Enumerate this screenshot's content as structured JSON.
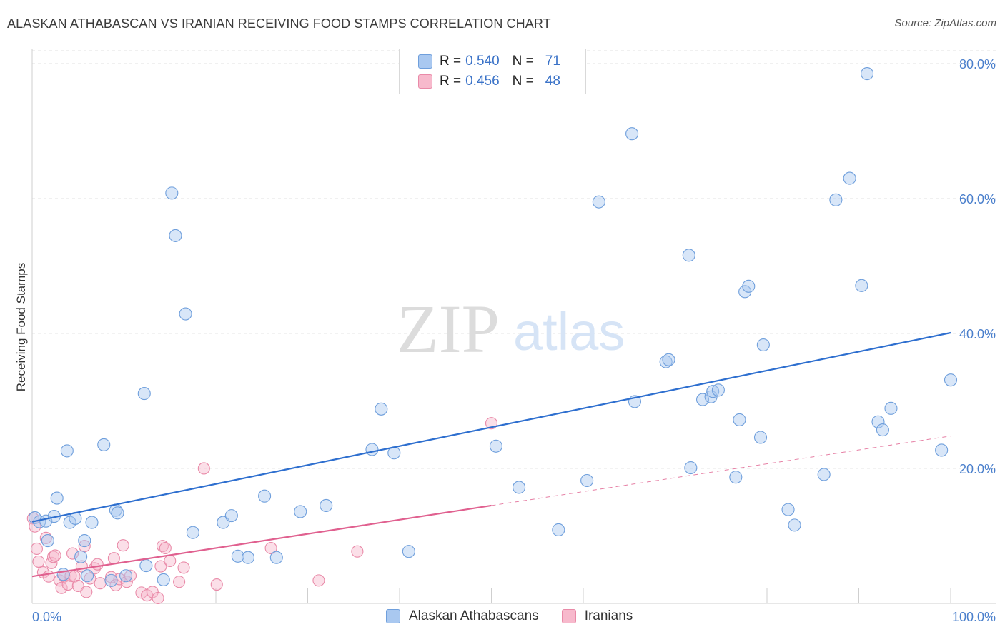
{
  "header": {
    "title": "ALASKAN ATHABASCAN VS IRANIAN RECEIVING FOOD STAMPS CORRELATION CHART",
    "source": "Source: ZipAtlas.com"
  },
  "watermark": {
    "zip": "ZIP",
    "atlas": "atlas"
  },
  "legend": {
    "rows": [
      {
        "r_label": "R =",
        "r_value": "0.540",
        "n_label": "N =",
        "n_value": "71"
      },
      {
        "r_label": "R =",
        "r_value": "0.456",
        "n_label": "N =",
        "n_value": "48"
      }
    ]
  },
  "colors": {
    "blue_fill": "#a9c8f0",
    "blue_stroke": "#6f9fdc",
    "blue_line": "#2e6fcf",
    "pink_fill": "#f7b9cc",
    "pink_stroke": "#e98aa8",
    "pink_line": "#e0608f"
  },
  "chart_data": {
    "type": "scatter",
    "title": "ALASKAN ATHABASCAN VS IRANIAN RECEIVING FOOD STAMPS CORRELATION CHART",
    "xlabel": "",
    "ylabel": "Receiving Food Stamps",
    "xlim": [
      0,
      100
    ],
    "ylim": [
      0,
      82
    ],
    "x_tick_labels": [
      "0.0%",
      "100.0%"
    ],
    "y_ticks": [
      20,
      40,
      60,
      80
    ],
    "y_tick_labels": [
      "20.0%",
      "40.0%",
      "60.0%",
      "80.0%"
    ],
    "grid": true,
    "legend_position": "top-center",
    "series": [
      {
        "name": "Alaskan Athabascans",
        "color": "#a9c8f0",
        "trend": {
          "x": [
            0,
            100
          ],
          "y": [
            12.1,
            40.1
          ],
          "style": "solid"
        },
        "points": [
          [
            0.3,
            12.7
          ],
          [
            0.8,
            12.1
          ],
          [
            1.5,
            12.2
          ],
          [
            1.7,
            9.3
          ],
          [
            2.4,
            12.9
          ],
          [
            2.7,
            15.6
          ],
          [
            3.4,
            4.3
          ],
          [
            3.8,
            22.6
          ],
          [
            4.1,
            12.0
          ],
          [
            4.7,
            12.6
          ],
          [
            5.3,
            6.9
          ],
          [
            5.7,
            9.3
          ],
          [
            6.0,
            4.1
          ],
          [
            6.5,
            12.0
          ],
          [
            7.8,
            23.5
          ],
          [
            8.6,
            3.4
          ],
          [
            9.1,
            13.8
          ],
          [
            9.3,
            13.4
          ],
          [
            10.2,
            4.1
          ],
          [
            12.2,
            31.1
          ],
          [
            12.4,
            5.6
          ],
          [
            14.3,
            3.5
          ],
          [
            15.2,
            60.8
          ],
          [
            15.6,
            54.5
          ],
          [
            16.7,
            42.9
          ],
          [
            17.5,
            10.5
          ],
          [
            20.8,
            12.0
          ],
          [
            21.7,
            13.0
          ],
          [
            22.4,
            7.0
          ],
          [
            23.5,
            6.8
          ],
          [
            25.3,
            15.9
          ],
          [
            26.6,
            6.8
          ],
          [
            29.2,
            13.6
          ],
          [
            32.0,
            14.5
          ],
          [
            38.0,
            28.8
          ],
          [
            37.0,
            22.8
          ],
          [
            39.4,
            22.3
          ],
          [
            41.0,
            7.7
          ],
          [
            50.5,
            23.3
          ],
          [
            53.0,
            17.2
          ],
          [
            57.3,
            10.9
          ],
          [
            60.4,
            18.2
          ],
          [
            61.7,
            59.5
          ],
          [
            65.3,
            69.6
          ],
          [
            65.6,
            29.9
          ],
          [
            69.0,
            35.8
          ],
          [
            69.3,
            36.1
          ],
          [
            71.5,
            51.6
          ],
          [
            71.7,
            20.1
          ],
          [
            73.0,
            30.2
          ],
          [
            73.9,
            30.6
          ],
          [
            74.1,
            31.4
          ],
          [
            74.7,
            31.6
          ],
          [
            76.6,
            18.7
          ],
          [
            77.0,
            27.2
          ],
          [
            77.6,
            46.2
          ],
          [
            78.0,
            47.0
          ],
          [
            79.3,
            24.6
          ],
          [
            79.6,
            38.3
          ],
          [
            82.3,
            13.9
          ],
          [
            83.0,
            11.6
          ],
          [
            86.2,
            19.1
          ],
          [
            87.5,
            59.8
          ],
          [
            89.0,
            63.0
          ],
          [
            90.3,
            47.1
          ],
          [
            90.9,
            78.5
          ],
          [
            92.1,
            26.9
          ],
          [
            92.6,
            25.7
          ],
          [
            93.5,
            28.9
          ],
          [
            99.0,
            22.7
          ],
          [
            100.0,
            33.1
          ]
        ]
      },
      {
        "name": "Iranians",
        "color": "#f7b9cc",
        "trend": {
          "x": [
            0,
            50
          ],
          "y": [
            4.0,
            14.5
          ],
          "style": "solid",
          "extended": {
            "x": [
              50,
              100
            ],
            "y": [
              14.5,
              24.8
            ],
            "style": "dashed"
          }
        },
        "points": [
          [
            0.1,
            12.6
          ],
          [
            0.5,
            8.1
          ],
          [
            0.7,
            6.2
          ],
          [
            1.2,
            4.6
          ],
          [
            1.5,
            9.7
          ],
          [
            1.8,
            4.0
          ],
          [
            2.1,
            6.0
          ],
          [
            2.3,
            6.9
          ],
          [
            2.5,
            7.1
          ],
          [
            3.0,
            3.4
          ],
          [
            3.2,
            2.3
          ],
          [
            3.5,
            4.0
          ],
          [
            3.9,
            2.8
          ],
          [
            4.2,
            4.1
          ],
          [
            4.4,
            7.4
          ],
          [
            4.6,
            4.0
          ],
          [
            5.0,
            2.6
          ],
          [
            5.4,
            5.5
          ],
          [
            5.7,
            8.5
          ],
          [
            5.9,
            1.7
          ],
          [
            6.3,
            3.7
          ],
          [
            6.8,
            5.2
          ],
          [
            7.1,
            5.8
          ],
          [
            7.4,
            3.0
          ],
          [
            8.6,
            3.9
          ],
          [
            8.9,
            6.7
          ],
          [
            9.1,
            2.7
          ],
          [
            9.5,
            3.6
          ],
          [
            9.9,
            8.6
          ],
          [
            10.3,
            3.2
          ],
          [
            10.7,
            4.1
          ],
          [
            11.9,
            1.6
          ],
          [
            12.5,
            1.2
          ],
          [
            13.1,
            1.7
          ],
          [
            13.7,
            0.8
          ],
          [
            14.0,
            5.5
          ],
          [
            14.2,
            8.5
          ],
          [
            14.5,
            8.2
          ],
          [
            15.0,
            6.3
          ],
          [
            16.0,
            3.2
          ],
          [
            16.5,
            5.3
          ],
          [
            18.7,
            20.0
          ],
          [
            20.1,
            2.8
          ],
          [
            26.0,
            8.2
          ],
          [
            31.2,
            3.4
          ],
          [
            35.4,
            7.7
          ],
          [
            50.0,
            26.7
          ],
          [
            0.3,
            11.4
          ]
        ]
      }
    ]
  },
  "bottom_legend": [
    {
      "label": "Alaskan Athabascans"
    },
    {
      "label": "Iranians"
    }
  ]
}
